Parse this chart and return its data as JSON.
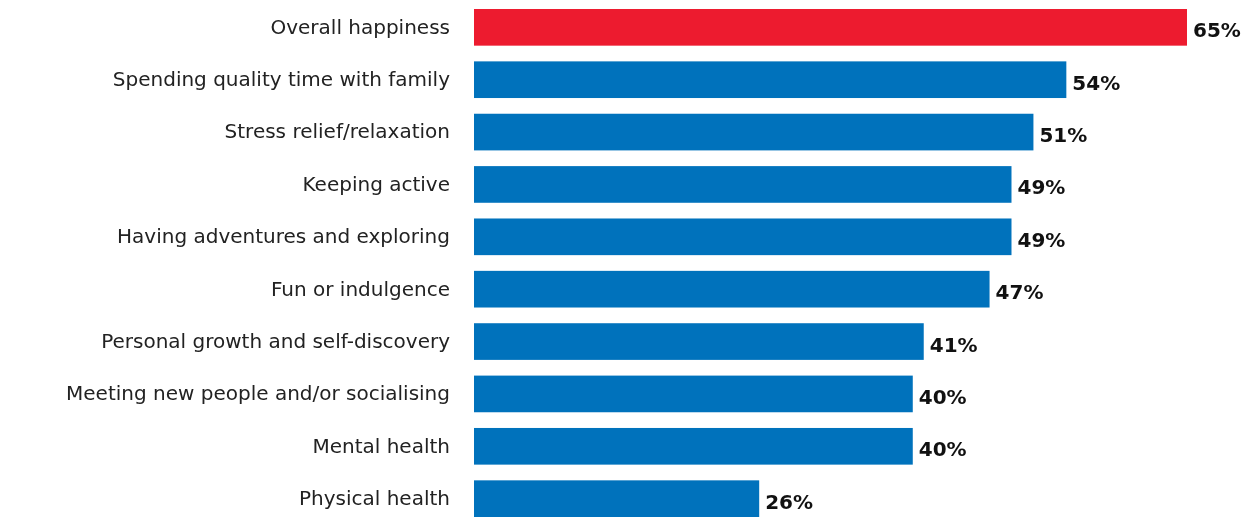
{
  "chart_data": {
    "type": "bar",
    "orientation": "horizontal",
    "categories": [
      "Overall happiness",
      "Spending quality time with family",
      "Stress relief/relaxation",
      "Keeping active",
      "Having adventures and exploring",
      "Fun or indulgence",
      "Personal growth and self-discovery",
      "Meeting new people and/or socialising",
      "Mental health",
      "Physical health"
    ],
    "values": [
      65,
      54,
      51,
      49,
      49,
      47,
      41,
      40,
      40,
      26
    ],
    "colors": [
      "#ed1b2f",
      "#0072bc",
      "#0072bc",
      "#0072bc",
      "#0072bc",
      "#0072bc",
      "#0072bc",
      "#0072bc",
      "#0072bc",
      "#0072bc"
    ],
    "value_labels": [
      "65%",
      "54%",
      "51%",
      "49%",
      "49%",
      "47%",
      "41%",
      "40%",
      "40%",
      "26%"
    ]
  }
}
